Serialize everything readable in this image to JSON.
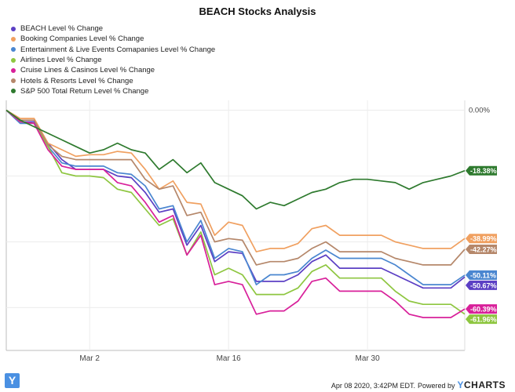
{
  "chart_data": {
    "type": "line",
    "title": "BEACH Stocks Analysis",
    "x": [
      "2020-02-21",
      "2020-02-24",
      "2020-02-25",
      "2020-02-26",
      "2020-02-27",
      "2020-02-28",
      "2020-03-02",
      "2020-03-03",
      "2020-03-04",
      "2020-03-05",
      "2020-03-06",
      "2020-03-09",
      "2020-03-10",
      "2020-03-11",
      "2020-03-12",
      "2020-03-13",
      "2020-03-16",
      "2020-03-17",
      "2020-03-18",
      "2020-03-19",
      "2020-03-20",
      "2020-03-23",
      "2020-03-24",
      "2020-03-25",
      "2020-03-26",
      "2020-03-27",
      "2020-03-30",
      "2020-03-31",
      "2020-04-01",
      "2020-04-02",
      "2020-04-03",
      "2020-04-06",
      "2020-04-07",
      "2020-04-08"
    ],
    "x_ticks": [
      "Mar 2",
      "Mar 16",
      "Mar 30"
    ],
    "y_axis_labels": [
      "0.00%"
    ],
    "ylim": [
      -73,
      3
    ],
    "grid": true,
    "legend_position": "top-left",
    "series": [
      {
        "name": "BEACH Level % Change",
        "color": "#5b3fc4",
        "end_label": "-50.67%",
        "values": [
          0,
          -3.5,
          -3.5,
          -10,
          -15,
          -18,
          -18,
          -18,
          -20,
          -20.5,
          -25,
          -31,
          -30,
          -41,
          -35,
          -46,
          -43,
          -43.5,
          -52,
          -52,
          -52,
          -50,
          -46,
          -44,
          -48,
          -48,
          -48,
          -48,
          -50,
          -52,
          -54,
          -54,
          -54,
          -50.67
        ]
      },
      {
        "name": "Booking Companies Level % Change",
        "color": "#f0a060",
        "end_label": "-38.99%",
        "values": [
          0,
          -2.5,
          -2.5,
          -10,
          -12,
          -14,
          -13.5,
          -13.5,
          -12.5,
          -13,
          -18,
          -24,
          -21.5,
          -28,
          -28.5,
          -38,
          -34,
          -35,
          -43,
          -42,
          -42,
          -40.5,
          -36,
          -35,
          -38,
          -38,
          -38,
          -38,
          -40,
          -41,
          -42,
          -42,
          -42,
          -38.99
        ]
      },
      {
        "name": "Entertainment & Live Events Comapanies Level % Change",
        "color": "#4a86d0",
        "end_label": "-50.11%",
        "values": [
          0,
          -4,
          -4,
          -11,
          -16,
          -17,
          -17,
          -17,
          -19,
          -19.5,
          -23,
          -30,
          -29,
          -40,
          -33.5,
          -45,
          -42,
          -43,
          -53,
          -50,
          -50,
          -49,
          -45,
          -42.5,
          -45,
          -45,
          -45,
          -45,
          -47,
          -50,
          -53,
          -53,
          -53,
          -50.11
        ]
      },
      {
        "name": "Airlines Level % Change",
        "color": "#8ec640",
        "end_label": "-61.96%",
        "values": [
          0,
          -3.5,
          -4,
          -11,
          -19,
          -20,
          -20,
          -20.5,
          -24,
          -25,
          -30,
          -35,
          -33,
          -44,
          -37,
          -50,
          -48,
          -50,
          -56,
          -56,
          -56,
          -54,
          -49,
          -47,
          -51,
          -51,
          -51,
          -51,
          -55,
          -58,
          -59,
          -59,
          -59,
          -61.96
        ]
      },
      {
        "name": "Cruise Lines & Casinos Level % Change",
        "color": "#d8209a",
        "end_label": "-60.39%",
        "values": [
          0,
          -3.5,
          -4,
          -12,
          -17,
          -18,
          -18,
          -18,
          -22,
          -23,
          -28,
          -34,
          -32,
          -44,
          -38,
          -53,
          -52,
          -53,
          -62,
          -61,
          -61,
          -58,
          -52,
          -51,
          -55,
          -55,
          -55,
          -55,
          -58,
          -62,
          -63,
          -63,
          -63,
          -60.39
        ]
      },
      {
        "name": "Hotels & Resorts Level % Change",
        "color": "#b5876a",
        "end_label": "-42.27%",
        "values": [
          0,
          -3,
          -3,
          -10.5,
          -14,
          -15,
          -15,
          -15,
          -15,
          -15,
          -21,
          -24,
          -23,
          -32,
          -31,
          -40,
          -39,
          -39.5,
          -47,
          -46,
          -46,
          -45,
          -42,
          -40,
          -43,
          -43,
          -43,
          -43,
          -45,
          -46,
          -47,
          -47,
          -47,
          -42.27
        ]
      },
      {
        "name": "S&P 500 Total Return Level % Change",
        "color": "#2e7a2e",
        "end_label": "-18.38%",
        "values": [
          0,
          -3,
          -5,
          -7,
          -9,
          -11,
          -13,
          -12,
          -10,
          -12,
          -13,
          -18,
          -15,
          -19,
          -16,
          -22,
          -24,
          -26,
          -30,
          -28,
          -29,
          -27,
          -25,
          -24,
          -22,
          -21,
          -21,
          -21.5,
          -22,
          -24,
          -22,
          -21,
          -20,
          -18.38
        ]
      }
    ]
  },
  "footer": {
    "logo_letter": "Y",
    "timestamp": "Apr 08 2020, 3:42PM EDT.",
    "powered_by": "Powered by",
    "brand_y": "Y",
    "brand_rest": "CHARTS"
  }
}
